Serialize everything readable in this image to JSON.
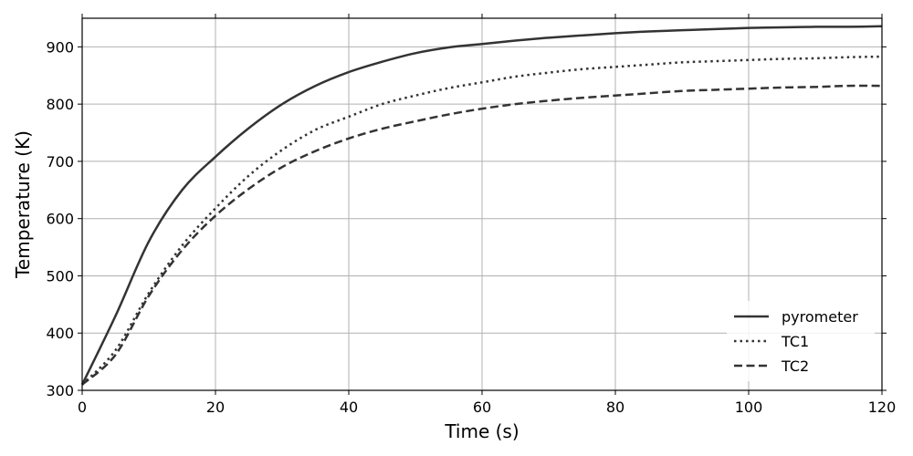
{
  "chart_data": {
    "type": "line",
    "title": "",
    "xlabel": "Time (s)",
    "ylabel": "Temperature (K)",
    "xlim": [
      0,
      120
    ],
    "ylim": [
      300,
      950
    ],
    "xticks": [
      0,
      20,
      40,
      60,
      80,
      100,
      120
    ],
    "yticks": [
      300,
      400,
      500,
      600,
      700,
      800,
      900
    ],
    "xtick_labels": [
      "0",
      "20",
      "40",
      "60",
      "80",
      "100",
      "120"
    ],
    "ytick_labels": [
      "300",
      "400",
      "500",
      "600",
      "700",
      "800",
      "900"
    ],
    "grid": true,
    "legend_position": "lower-right",
    "x": [
      0,
      5,
      10,
      15,
      20,
      25,
      30,
      35,
      40,
      45,
      50,
      55,
      60,
      65,
      70,
      75,
      80,
      85,
      90,
      95,
      100,
      105,
      110,
      115,
      120
    ],
    "series": [
      {
        "name": "pyrometer",
        "style": "solid",
        "color": "#333333",
        "values": [
          310,
          430,
          560,
          650,
          708,
          758,
          800,
          832,
          856,
          874,
          889,
          899,
          905,
          911,
          916,
          920,
          924,
          927,
          929,
          931,
          933,
          934,
          935,
          935,
          936
        ]
      },
      {
        "name": "TC1",
        "style": "dotted",
        "color": "#333333",
        "values": [
          310,
          370,
          470,
          553,
          618,
          675,
          720,
          755,
          778,
          800,
          815,
          828,
          838,
          848,
          855,
          861,
          865,
          869,
          873,
          875,
          877,
          879,
          880,
          882,
          883
        ]
      },
      {
        "name": "TC2",
        "style": "dashed",
        "color": "#333333",
        "values": [
          310,
          362,
          465,
          545,
          605,
          652,
          690,
          718,
          740,
          757,
          770,
          782,
          792,
          800,
          806,
          811,
          815,
          819,
          823,
          825,
          827,
          829,
          830,
          832,
          832
        ]
      }
    ]
  }
}
